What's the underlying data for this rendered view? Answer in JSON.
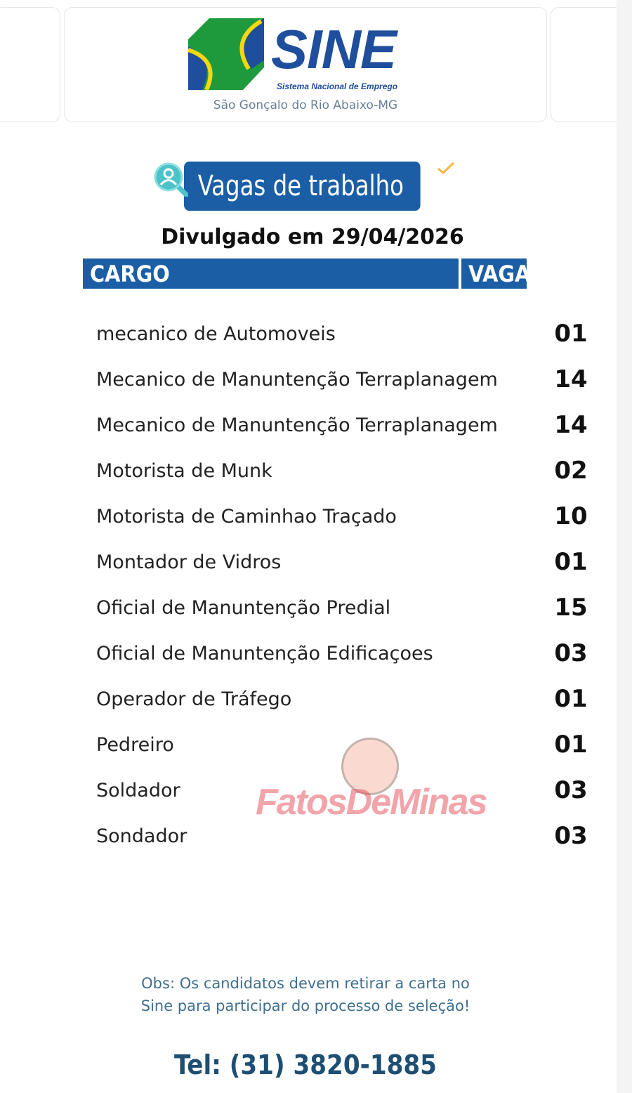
{
  "header": {
    "brand": "SINE",
    "brand_subtitle": "Sistema Nacional de Emprego",
    "city": "São Gonçalo do Rio Abaixo-MG"
  },
  "banner": {
    "title": "Vagas de trabalho",
    "date_line": "Divulgado em 29/04/2026"
  },
  "table": {
    "headers": {
      "cargo": "CARGO",
      "vaga": "VAGA"
    },
    "rows": [
      {
        "cargo": "mecanico de Automoveis",
        "vaga": "01"
      },
      {
        "cargo": "Mecanico de Manuntenção Terraplanagem",
        "vaga": "14"
      },
      {
        "cargo": "Mecanico de Manuntenção Terraplanagem",
        "vaga": "14"
      },
      {
        "cargo": "Motorista de Munk",
        "vaga": "02"
      },
      {
        "cargo": "Motorista de Caminhao Traçado",
        "vaga": "10"
      },
      {
        "cargo": "Montador de Vidros",
        "vaga": "01"
      },
      {
        "cargo": "Oficial de Manuntenção Predial",
        "vaga": "15"
      },
      {
        "cargo": "Oficial de Manuntenção Edificaçoes",
        "vaga": "03"
      },
      {
        "cargo": "Operador de Tráfego",
        "vaga": "01"
      },
      {
        "cargo": "Pedreiro",
        "vaga": "01"
      },
      {
        "cargo": "Soldador",
        "vaga": "03"
      },
      {
        "cargo": "Sondador",
        "vaga": "03"
      }
    ]
  },
  "watermark": "FatosDeMinas",
  "footer": {
    "obs_line1": "Obs: Os candidatos devem retirar a carta no",
    "obs_line2": "Sine para participar do processo de seleção!",
    "tel": "Tel: (31) 3820-1885"
  },
  "colors": {
    "brand_blue": "#1b5ea6",
    "green": "#1e9a3c",
    "yellow": "#f5d80f"
  }
}
